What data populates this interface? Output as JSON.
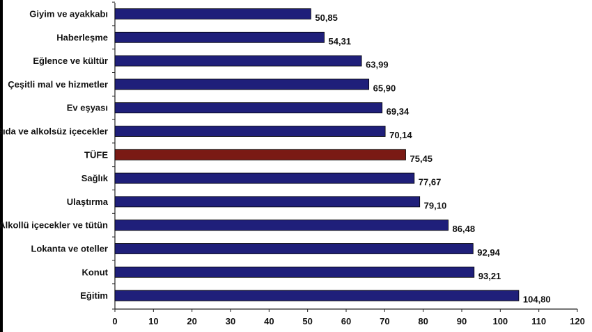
{
  "chart_data": {
    "type": "bar",
    "orientation": "horizontal",
    "categories": [
      "Giyim ve ayakkabı",
      "Haberleşme",
      "Eğlence ve kültür",
      "Çeşitli mal ve hizmetler",
      "Ev eşyası",
      "Gıda ve alkolsüz içecekler",
      "TÜFE",
      "Sağlık",
      "Ulaştırma",
      "Alkollü içecekler ve tütün",
      "Lokanta ve oteller",
      "Konut",
      "Eğitim"
    ],
    "values": [
      50.85,
      54.31,
      63.99,
      65.9,
      69.34,
      70.14,
      75.45,
      77.67,
      79.1,
      86.48,
      92.94,
      93.21,
      104.8
    ],
    "value_labels": [
      "50,85",
      "54,31",
      "63,99",
      "65,90",
      "69,34",
      "70,14",
      "75,45",
      "77,67",
      "79,10",
      "86,48",
      "92,94",
      "93,21",
      "104,80"
    ],
    "xticks": [
      "0",
      "10",
      "20",
      "30",
      "40",
      "50",
      "60",
      "70",
      "80",
      "90",
      "100",
      "110",
      "120"
    ],
    "xlim": [
      0,
      120
    ],
    "grid": false,
    "legend": "none",
    "colors": {
      "bar": "#1f1f7a",
      "highlight": "#7a1a14",
      "highlight_category": "TÜFE"
    }
  }
}
